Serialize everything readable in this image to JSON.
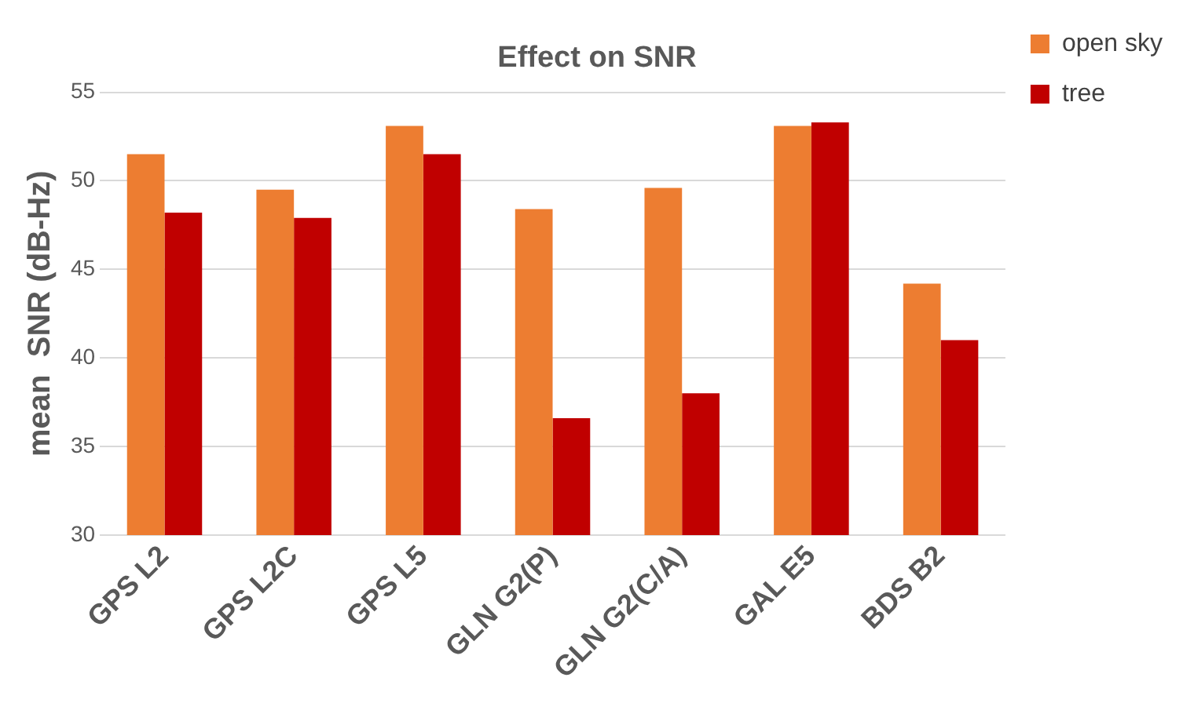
{
  "chart_data": {
    "type": "bar",
    "title": "Effect on SNR",
    "ylabel": "mean  SNR (dB-Hz)",
    "categories": [
      "GPS L2",
      "GPS L2C",
      "GPS L5",
      "GLN G2(P)",
      "GLN G2(C/A)",
      "GAL E5",
      "BDS B2"
    ],
    "series": [
      {
        "name": "open sky",
        "color": "#ed7d31",
        "values": [
          51.5,
          49.5,
          53.1,
          48.4,
          49.6,
          53.1,
          44.2
        ]
      },
      {
        "name": "tree",
        "color": "#c00000",
        "values": [
          48.2,
          47.9,
          51.5,
          36.6,
          38.0,
          53.3,
          41.0
        ]
      }
    ],
    "ylim": [
      30,
      55
    ],
    "yticks": [
      30,
      35,
      40,
      45,
      50,
      55
    ],
    "grid": "y",
    "legend": "top right"
  }
}
